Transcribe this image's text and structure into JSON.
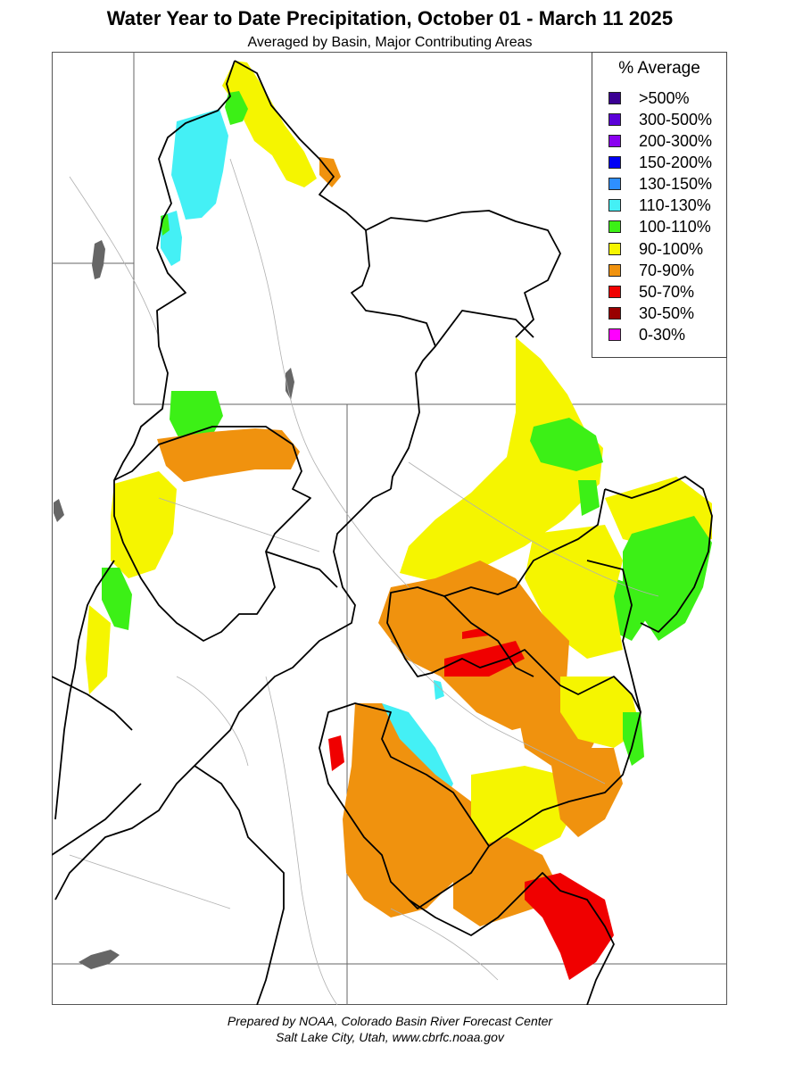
{
  "header": {
    "title": "Water Year to Date Precipitation, October 01  - March 11 2025",
    "subtitle": "Averaged by Basin, Major Contributing Areas"
  },
  "legend": {
    "title": "% Average",
    "items": [
      {
        "label": ">500%",
        "color": "#3a0093"
      },
      {
        "label": "300-500%",
        "color": "#5a00d8"
      },
      {
        "label": "200-300%",
        "color": "#8a00f0"
      },
      {
        "label": "150-200%",
        "color": "#0000f5"
      },
      {
        "label": "130-150%",
        "color": "#2e8fff"
      },
      {
        "label": "110-130%",
        "color": "#44f0f5"
      },
      {
        "label": "100-110%",
        "color": "#3cf016"
      },
      {
        "label": "90-100%",
        "color": "#f5f500"
      },
      {
        "label": "70-90%",
        "color": "#f0920e"
      },
      {
        "label": "50-70%",
        "color": "#f00000"
      },
      {
        "label": "30-50%",
        "color": "#990000"
      },
      {
        "label": "0-30%",
        "color": "#ff00ff"
      }
    ]
  },
  "footer": {
    "line1": "Prepared by NOAA, Colorado Basin River Forecast Center",
    "line2": "Salt Lake City, Utah, www.cbrfc.noaa.gov"
  }
}
